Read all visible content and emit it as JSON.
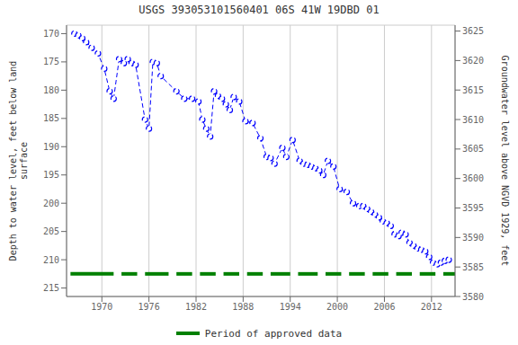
{
  "chart_data": {
    "type": "line",
    "title": "USGS 393053101560401 06S 41W 19DBD 01",
    "ylabel": "Depth to water level, feet below land\nsurface",
    "y2label": "Groundwater level above NGVD 1929, feet",
    "grid": true,
    "xlim": [
      1965.5,
      2015.0
    ],
    "xticks": [
      1970,
      1976,
      1982,
      1988,
      1994,
      2000,
      2006,
      2012
    ],
    "ylim": [
      216.5,
      168.5
    ],
    "yticks": [
      170,
      175,
      180,
      185,
      190,
      195,
      200,
      205,
      210,
      215
    ],
    "y2lim": [
      3580,
      3626
    ],
    "y2ticks": [
      3580,
      3585,
      3590,
      3595,
      3600,
      3605,
      3610,
      3615,
      3620,
      3625
    ],
    "x": [
      1966.5,
      1967.0,
      1967.5,
      1968.0,
      1968.7,
      1969.5,
      1970.3,
      1971.0,
      1971.5,
      1972.2,
      1972.8,
      1973.3,
      1973.8,
      1974.3,
      1975.5,
      1976.0,
      1976.5,
      1977.0,
      1977.5,
      1979.5,
      1980.5,
      1981.5,
      1982.3,
      1982.8,
      1983.3,
      1983.8,
      1984.3,
      1984.8,
      1985.3,
      1985.8,
      1986.3,
      1986.8,
      1987.5,
      1988.3,
      1989.2,
      1990.2,
      1991.0,
      1991.5,
      1992.0,
      1993.0,
      1993.5,
      1994.3,
      1995.2,
      1995.7,
      1996.2,
      1996.7,
      1997.2,
      1997.7,
      1998.2,
      1998.8,
      1999.5,
      2000.3,
      2001.2,
      2002.0,
      2002.8,
      2003.3,
      2003.8,
      2004.3,
      2004.8,
      2005.3,
      2005.8,
      2006.3,
      2006.8,
      2007.3,
      2007.8,
      2008.2,
      2008.7,
      2009.2,
      2009.7,
      2010.2,
      2010.7,
      2011.2,
      2011.7,
      2012.2,
      2012.7,
      2013.2,
      2013.7,
      2014.2
    ],
    "series": [
      {
        "type": "line",
        "color": "#0000ff",
        "marker": "circle",
        "line_style": "dashed",
        "values": [
          170.0,
          170.3,
          170.8,
          171.5,
          172.5,
          173.5,
          176.2,
          180.2,
          181.5,
          174.5,
          175.2,
          174.5,
          175.2,
          175.5,
          185.2,
          186.8,
          175.0,
          175.2,
          177.5,
          180.2,
          181.5,
          181.5,
          182.0,
          185.2,
          186.8,
          188.2,
          180.2,
          181.0,
          181.5,
          182.5,
          183.5,
          181.2,
          182.0,
          185.5,
          185.8,
          188.5,
          191.8,
          192.0,
          193.0,
          190.2,
          191.8,
          188.8,
          192.5,
          193.0,
          193.2,
          193.5,
          193.8,
          194.2,
          195.0,
          192.5,
          193.5,
          197.5,
          198.0,
          200.0,
          200.5,
          200.5,
          201.0,
          201.5,
          202.0,
          202.5,
          203.2,
          203.5,
          204.0,
          205.5,
          205.8,
          205.2,
          205.5,
          207.0,
          207.5,
          208.0,
          208.2,
          208.5,
          209.5,
          210.5,
          210.8,
          210.5,
          210.2,
          210.0
        ]
      },
      {
        "type": "segments",
        "name": "Period of approved data",
        "color": "#008000",
        "line_style": "solid",
        "y": 212.5,
        "segments": [
          [
            1966.0,
            1971.5
          ],
          [
            1972.5,
            1974.5
          ],
          [
            1975.5,
            1978.5
          ],
          [
            1979.5,
            1981.5
          ],
          [
            1982.5,
            1984.5
          ],
          [
            1985.5,
            1987.5
          ],
          [
            1988.5,
            1990.5
          ],
          [
            1991.5,
            1994.0
          ],
          [
            1995.0,
            1997.5
          ],
          [
            1998.5,
            2000.5
          ],
          [
            2001.5,
            2003.5
          ],
          [
            2004.5,
            2006.5
          ],
          [
            2007.5,
            2009.5
          ],
          [
            2010.5,
            2012.5
          ],
          [
            2013.5,
            2015.0
          ]
        ]
      }
    ]
  }
}
